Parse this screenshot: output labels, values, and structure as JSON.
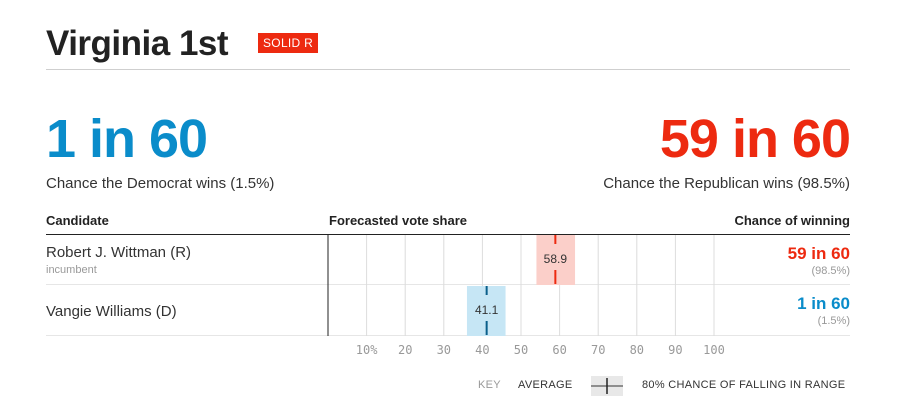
{
  "header": {
    "title": "Virginia 1st",
    "rating": "SOLID R"
  },
  "summary": {
    "dem_odds": "1 in 60",
    "dem_caption": "Chance the Democrat wins (1.5%)",
    "rep_odds": "59 in 60",
    "rep_caption": "Chance the Republican wins (98.5%)"
  },
  "table": {
    "col_candidate": "Candidate",
    "col_vote_share": "Forecasted vote share",
    "col_chance": "Chance of winning",
    "rows": [
      {
        "name": "Robert J. Wittman (R)",
        "note": "incumbent",
        "chance": "59 in 60",
        "chance_pct": "(98.5%)"
      },
      {
        "name": "Vangie Williams (D)",
        "note": "",
        "chance": "1 in 60",
        "chance_pct": "(1.5%)"
      }
    ]
  },
  "colors": {
    "republican": "#ed2a10",
    "democrat": "#0a8cca",
    "rep_range": "#fbcfc9",
    "dem_range": "#c6e6f5"
  },
  "chart_data": {
    "type": "bar",
    "xlim": [
      0,
      100
    ],
    "x_tick_labels": [
      "10%",
      "20",
      "30",
      "40",
      "50",
      "60",
      "70",
      "80",
      "90",
      "100"
    ],
    "x_tick_values": [
      10,
      20,
      30,
      40,
      50,
      60,
      70,
      80,
      90,
      100
    ],
    "series": [
      {
        "candidate": "Robert J. Wittman (R)",
        "average": 58.9,
        "average_label": "58.9",
        "range": [
          54,
          64
        ],
        "party": "republican"
      },
      {
        "candidate": "Vangie Williams (D)",
        "average": 41.1,
        "average_label": "41.1",
        "range": [
          36,
          46
        ],
        "party": "democrat"
      }
    ]
  },
  "key": {
    "label": "KEY",
    "average": "AVERAGE",
    "range": "80% CHANCE OF FALLING IN RANGE"
  }
}
